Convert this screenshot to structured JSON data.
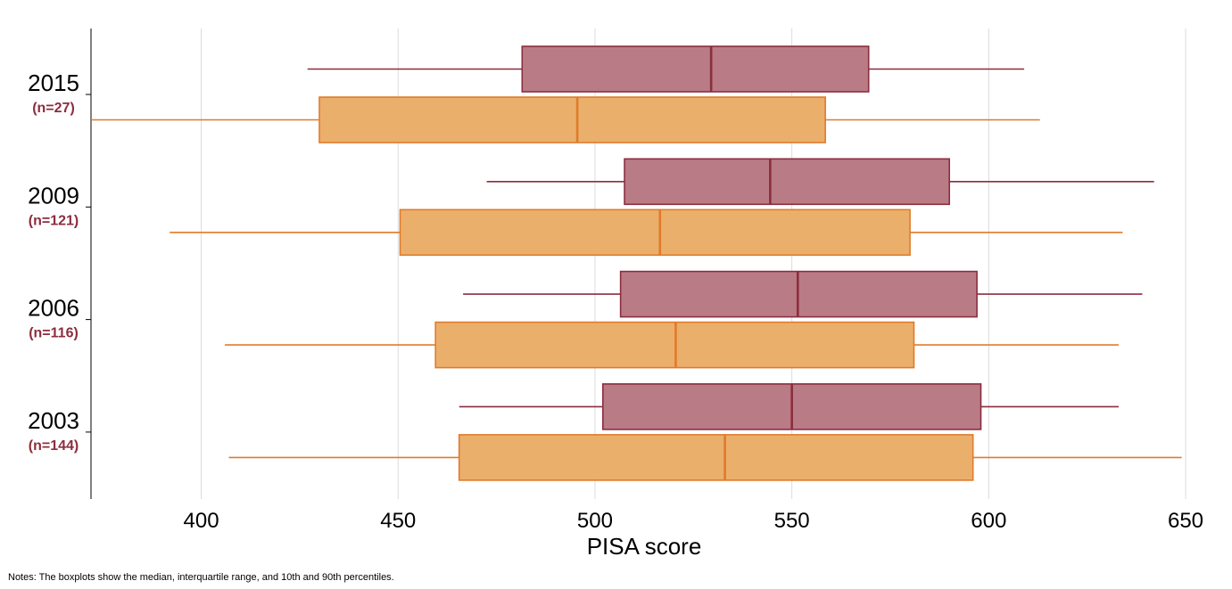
{
  "chart_data": {
    "type": "boxplot",
    "orientation": "horizontal",
    "xlabel": "PISA score",
    "xlim": [
      372,
      650
    ],
    "xticks": [
      400,
      450,
      500,
      550,
      600,
      650
    ],
    "grid": true,
    "colors": {
      "series_a_fill": "#b97c86",
      "series_a_stroke": "#8c2d3d",
      "series_b_fill": "#ebaf6c",
      "series_b_stroke": "#e07b2a",
      "n_label": "#8c2d3d"
    },
    "groups": [
      {
        "year": "2015",
        "n_label": "(n=27)",
        "boxes": [
          {
            "series": "a",
            "p10": 427,
            "q1": 481.5,
            "median": 529.5,
            "q3": 569.5,
            "p90": 609
          },
          {
            "series": "b",
            "p10": 372,
            "q1": 430,
            "median": 495.5,
            "q3": 558.5,
            "p90": 613
          }
        ]
      },
      {
        "year": "2009",
        "n_label": "(n=121)",
        "boxes": [
          {
            "series": "a",
            "p10": 472.5,
            "q1": 507.5,
            "median": 544.5,
            "q3": 590,
            "p90": 642
          },
          {
            "series": "b",
            "p10": 392,
            "q1": 450.5,
            "median": 516.5,
            "q3": 580,
            "p90": 634
          }
        ]
      },
      {
        "year": "2006",
        "n_label": "(n=116)",
        "boxes": [
          {
            "series": "a",
            "p10": 466.5,
            "q1": 506.5,
            "median": 551.5,
            "q3": 597,
            "p90": 639
          },
          {
            "series": "b",
            "p10": 406,
            "q1": 459.5,
            "median": 520.5,
            "q3": 581,
            "p90": 633
          }
        ]
      },
      {
        "year": "2003",
        "n_label": "(n=144)",
        "boxes": [
          {
            "series": "a",
            "p10": 465.5,
            "q1": 502,
            "median": 550,
            "q3": 598,
            "p90": 633
          },
          {
            "series": "b",
            "p10": 407,
            "q1": 465.5,
            "median": 533,
            "q3": 596,
            "p90": 649
          }
        ]
      }
    ]
  },
  "notes": "Notes: The boxplots show the median, interquartile range, and 10th and 90th percentiles."
}
